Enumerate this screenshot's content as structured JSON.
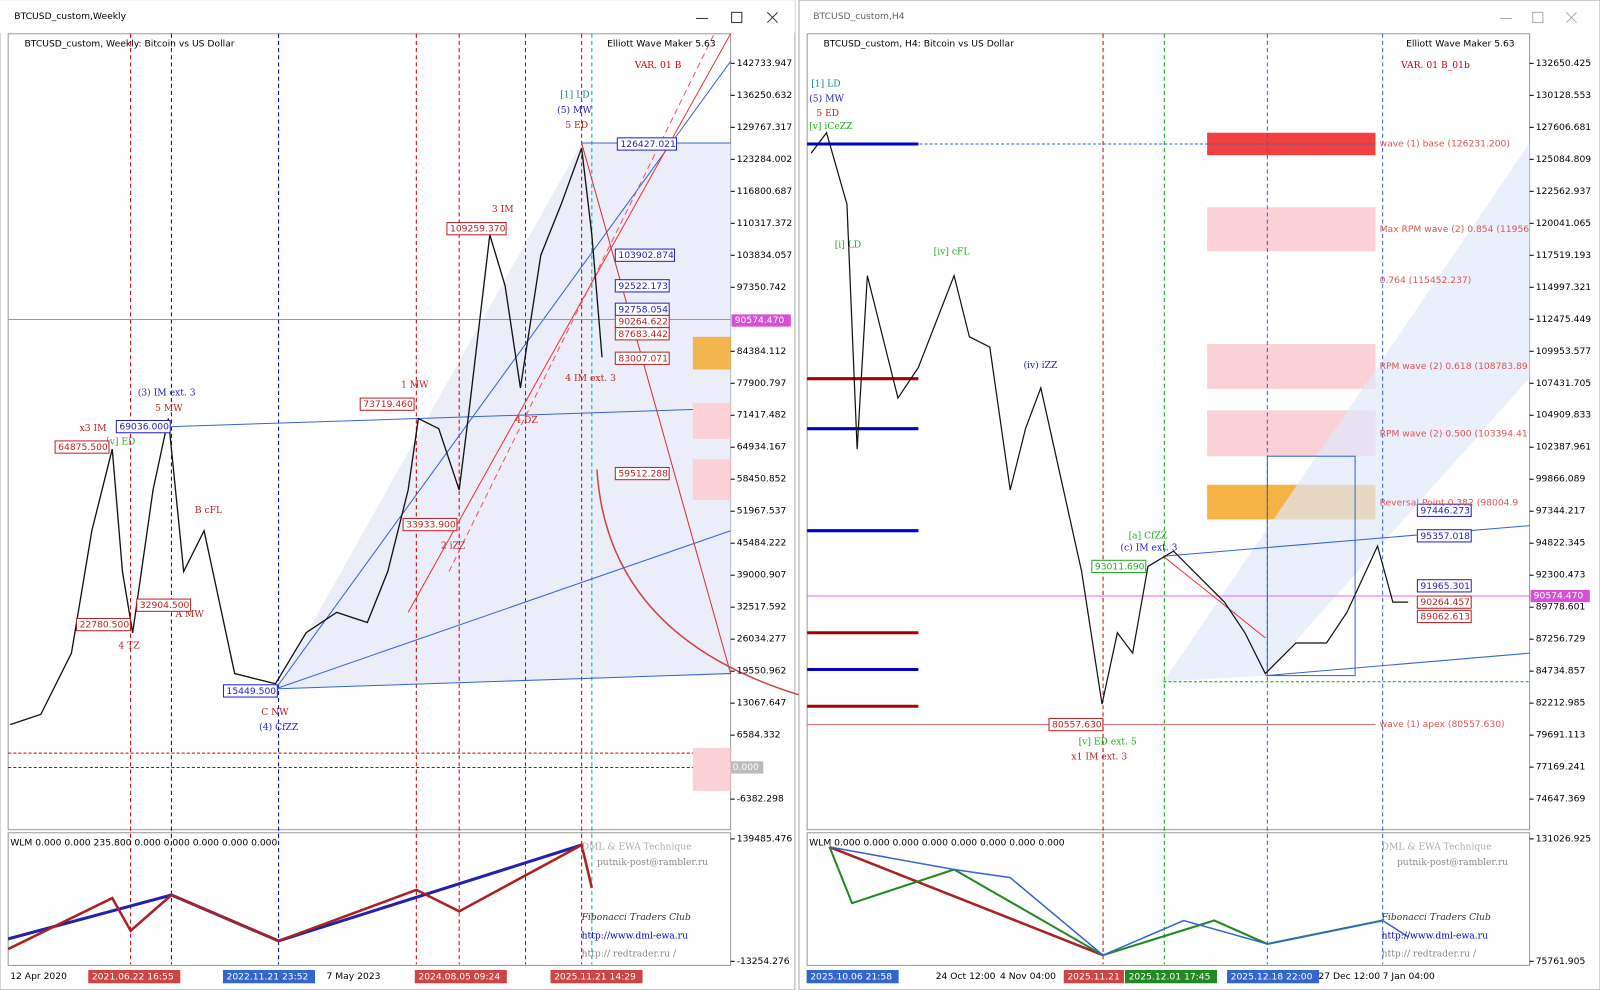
{
  "left": {
    "title": "BTCUSD_custom,Weekly",
    "header": "BTCUSD_custom, Weekly:  Bitcoin vs US Dollar",
    "indicator": "Elliott Wave Maker 5.63",
    "variant": "VAR. 01 B",
    "price_ticks": [
      142733.947,
      136250.632,
      129767.317,
      123284.002,
      116800.687,
      110317.372,
      103834.057,
      97350.742,
      84384.112,
      77900.797,
      71417.482,
      64934.167,
      58450.852,
      51967.537,
      45484.222,
      39000.907,
      32517.592,
      26034.277,
      19550.962,
      13067.647,
      6584.332,
      -6382.298
    ],
    "current_price": "90574.470",
    "zero_label": "0.000",
    "sub_ticks": [
      139485.476,
      -13254.276
    ],
    "sub_label": "WLM 0.000 0.000 235.800 0.000 0.000 0.000 0.000 0.000",
    "time_labels": [
      "12 Apr 2020",
      "2021.06.22 16:55",
      "2022.11.21 23:52",
      "7 May 2023",
      "2024.08.05 09:24",
      "2025.11.21 14:29"
    ],
    "annotations": [
      "(3) IM ext. 3",
      "5 MW",
      "x3 IM",
      "[v] ED",
      "4 TZ",
      "B cFL",
      "A MW",
      "C NW",
      "(4) CfZZ",
      "1 MW",
      "2 iZZ",
      "3 IM",
      "4 DZ",
      "[1] LD",
      "(5) MW",
      "5 ED",
      "4 IM ext. 3"
    ],
    "boxes": [
      "64875.500",
      "69036.000",
      "73719.460",
      "109259.370",
      "126427.021",
      "103902.874",
      "92522.173",
      "92758.054",
      "90264.622",
      "87683.442",
      "83007.071",
      "59512.288",
      "15449.500",
      "32904.500",
      "22780.500",
      "33933.900"
    ]
  },
  "right": {
    "title": "BTCUSD_custom,H4",
    "header": "BTCUSD_custom, H4:  Bitcoin vs US Dollar",
    "indicator": "Elliott Wave Maker 5.63",
    "variant": "VAR. 01 B_01b",
    "price_ticks": [
      132650.425,
      130128.553,
      127606.681,
      125084.809,
      122562.937,
      120041.065,
      117519.193,
      114997.321,
      112475.449,
      109953.577,
      107431.705,
      104909.833,
      102387.961,
      99866.089,
      97344.217,
      94822.345,
      92300.473,
      89778.601,
      87256.729,
      84734.857,
      82212.985,
      79691.113,
      77169.241,
      74647.369
    ],
    "current_price": "90574.470",
    "sub_ticks": [
      131026.925,
      75761.905
    ],
    "sub_label": "WLM 0.000 0.000 0.000 0.000 0.000 0.000 0.000 0.000",
    "time_labels": [
      "2025.10.06 21:58",
      "24 Oct 12:00",
      "4 Nov 04:00",
      "2025.11.21",
      "2025.12.01 17:45",
      "2025.12.18 22:00",
      "27 Dec 12:00",
      "7 Jan 04:00"
    ],
    "annotations": [
      "[1] LD",
      "(5) MW",
      "5 ED",
      "[v] iCeZZ",
      "[i] LD",
      "[iv] cFL",
      "(iv) iZZ",
      "[a] CfZZ",
      "(c) IM ext. 3",
      "[v] ED ext. 5",
      "x1 IM ext. 3"
    ],
    "boxes": [
      "93011.690",
      "80557.630",
      "97446.273",
      "95357.018",
      "91965.301",
      "90264.457",
      "89062.613"
    ],
    "zones": [
      "wave (1) base (126231.200)",
      "Max RPM wave (2) 0.854 (11956",
      "0.764 (115452.237)",
      "RPM wave (2) 0.618 (108783.89",
      "RPM wave (2) 0.500 (103394.41",
      "Reversal Point 0.382 (98004.9",
      "wave (1) apex (80557.630)"
    ]
  },
  "credits": [
    "DML & EWA Technique",
    "putnik-post@rambler.ru",
    "Fibonacci Traders Club",
    "http://www.dml-ewa.ru",
    "http:// redtrader.ru /"
  ]
}
